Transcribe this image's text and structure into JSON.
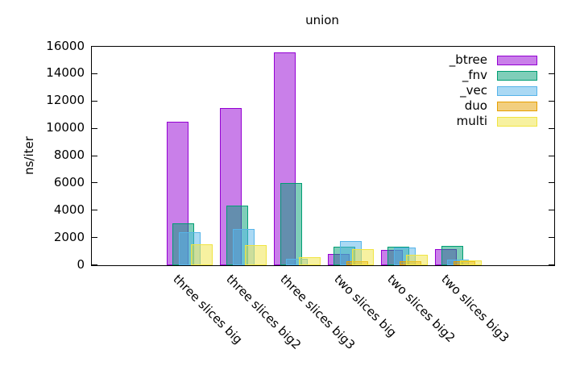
{
  "chart_data": {
    "type": "bar",
    "title": "union",
    "ylabel": "ns/iter",
    "xlabel": "",
    "ylim": [
      0,
      16000
    ],
    "ytick_step": 2000,
    "ytick_labels": [
      "0",
      "2000",
      "4000",
      "6000",
      "8000",
      "10000",
      "12000",
      "14000",
      "16000"
    ],
    "grid": false,
    "legend_position": "top-right-inside",
    "bar_fill_opacity": 0.5,
    "background_color": "#ffffff",
    "axis_color": "#000000",
    "categories": [
      "three slices big",
      "three slices big2",
      "three slices big3",
      "two slices big",
      "two slices big2",
      "two slices big3"
    ],
    "series": [
      {
        "name": "_btree",
        "color": "#9400d3",
        "values": [
          10500,
          11500,
          15600,
          800,
          1150,
          1200
        ]
      },
      {
        "name": "_fnv",
        "color": "#009e73",
        "values": [
          3050,
          4350,
          6000,
          1350,
          1350,
          1400
        ]
      },
      {
        "name": "_vec",
        "color": "#56b4e9",
        "values": [
          2450,
          2650,
          450,
          1750,
          1300,
          430
        ]
      },
      {
        "name": "duo",
        "color": "#e69f00",
        "values": [
          0,
          0,
          0,
          280,
          300,
          280
        ]
      },
      {
        "name": "multi",
        "color": "#f0e442",
        "values": [
          1550,
          1500,
          600,
          1200,
          750,
          350
        ]
      }
    ]
  }
}
